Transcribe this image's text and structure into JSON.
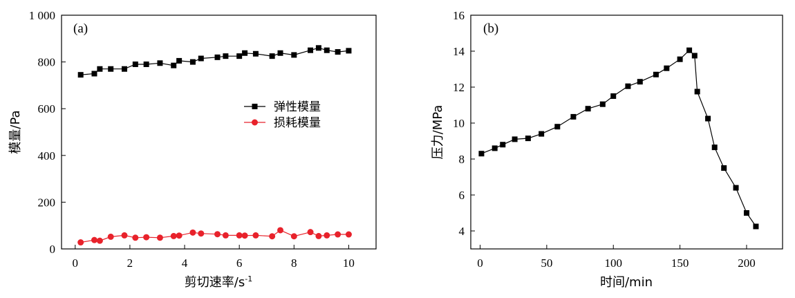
{
  "chart_data": [
    {
      "type": "line",
      "panel_label": "(a)",
      "xlabel": "剪切速率/s",
      "xlabel_sup": "-1",
      "ylabel": "模量/Pa",
      "xlim": [
        -0.5,
        11
      ],
      "ylim": [
        0,
        1000
      ],
      "xticks": [
        0,
        2,
        4,
        6,
        8,
        10
      ],
      "yticks": [
        0,
        200,
        400,
        600,
        800,
        1000
      ],
      "ytick_labels": [
        "0",
        "200",
        "400",
        "600",
        "800",
        "1 000"
      ],
      "legend_position": "center-right",
      "series": [
        {
          "name": "弹性模量",
          "color": "#000000",
          "marker": "square",
          "x": [
            0.2,
            0.7,
            0.9,
            1.3,
            1.8,
            2.2,
            2.6,
            3.1,
            3.6,
            3.8,
            4.3,
            4.6,
            5.2,
            5.5,
            6.0,
            6.2,
            6.6,
            7.2,
            7.5,
            8.0,
            8.6,
            8.9,
            9.2,
            9.6,
            10.0
          ],
          "y": [
            745,
            750,
            770,
            770,
            770,
            790,
            790,
            795,
            785,
            805,
            800,
            815,
            820,
            825,
            825,
            838,
            835,
            825,
            838,
            830,
            850,
            860,
            850,
            843,
            848
          ]
        },
        {
          "name": "损耗模量",
          "color": "#e8222b",
          "marker": "circle",
          "x": [
            0.2,
            0.7,
            0.9,
            1.3,
            1.8,
            2.2,
            2.6,
            3.1,
            3.6,
            3.8,
            4.3,
            4.6,
            5.2,
            5.5,
            6.0,
            6.2,
            6.6,
            7.2,
            7.5,
            8.0,
            8.6,
            8.9,
            9.2,
            9.6,
            10.0
          ],
          "y": [
            28,
            38,
            35,
            52,
            58,
            48,
            50,
            48,
            55,
            57,
            70,
            66,
            63,
            58,
            58,
            57,
            58,
            54,
            80,
            54,
            72,
            55,
            58,
            62,
            62
          ]
        }
      ]
    },
    {
      "type": "line",
      "panel_label": "(b)",
      "xlabel": "时间/min",
      "ylabel": "压力/MPa",
      "xlim": [
        -7,
        227
      ],
      "ylim": [
        3,
        16
      ],
      "xticks": [
        0,
        50,
        100,
        150,
        200
      ],
      "yticks": [
        4,
        6,
        8,
        10,
        12,
        14,
        16
      ],
      "series": [
        {
          "name": "",
          "color": "#000000",
          "marker": "square",
          "x": [
            1,
            11,
            17,
            26,
            36,
            46,
            58,
            70,
            81,
            92,
            100,
            111,
            120,
            132,
            140,
            150,
            157,
            161,
            163,
            171,
            176,
            183,
            192,
            200,
            207
          ],
          "y": [
            8.3,
            8.6,
            8.8,
            9.1,
            9.15,
            9.4,
            9.8,
            10.35,
            10.8,
            11.05,
            11.5,
            12.05,
            12.3,
            12.7,
            13.05,
            13.55,
            14.05,
            13.75,
            11.75,
            10.25,
            8.65,
            7.5,
            6.4,
            5.0,
            4.25
          ]
        }
      ]
    }
  ]
}
